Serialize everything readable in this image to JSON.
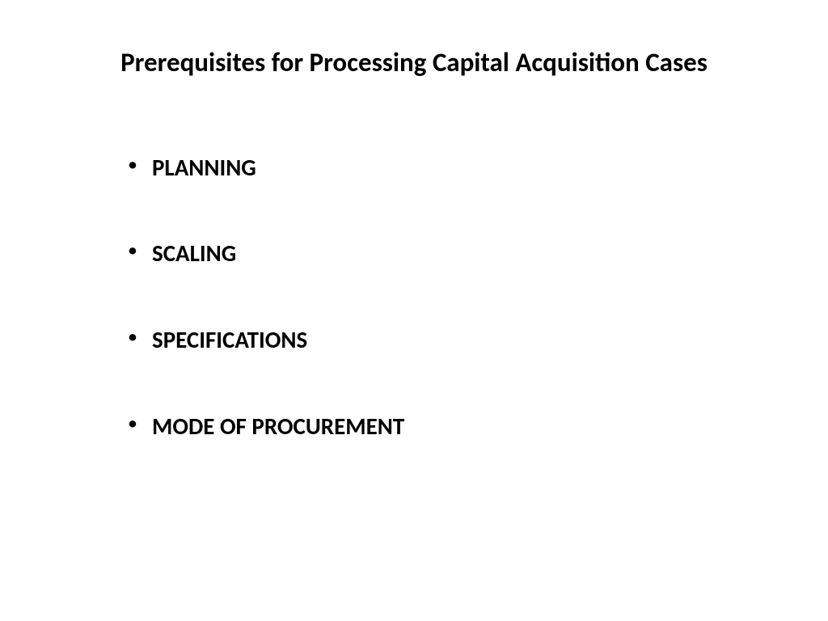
{
  "slide": {
    "title": "Prerequisites for Processing Capital Acquisition Cases",
    "bullets": {
      "0": "PLANNING",
      "1": "SCALING",
      "2": "SPECIFICATIONS",
      "3": "MODE OF PROCUREMENT"
    },
    "background_color": "#ffffff",
    "text_color": "#000000",
    "title_fontsize": 33,
    "bullet_fontsize": 29
  }
}
